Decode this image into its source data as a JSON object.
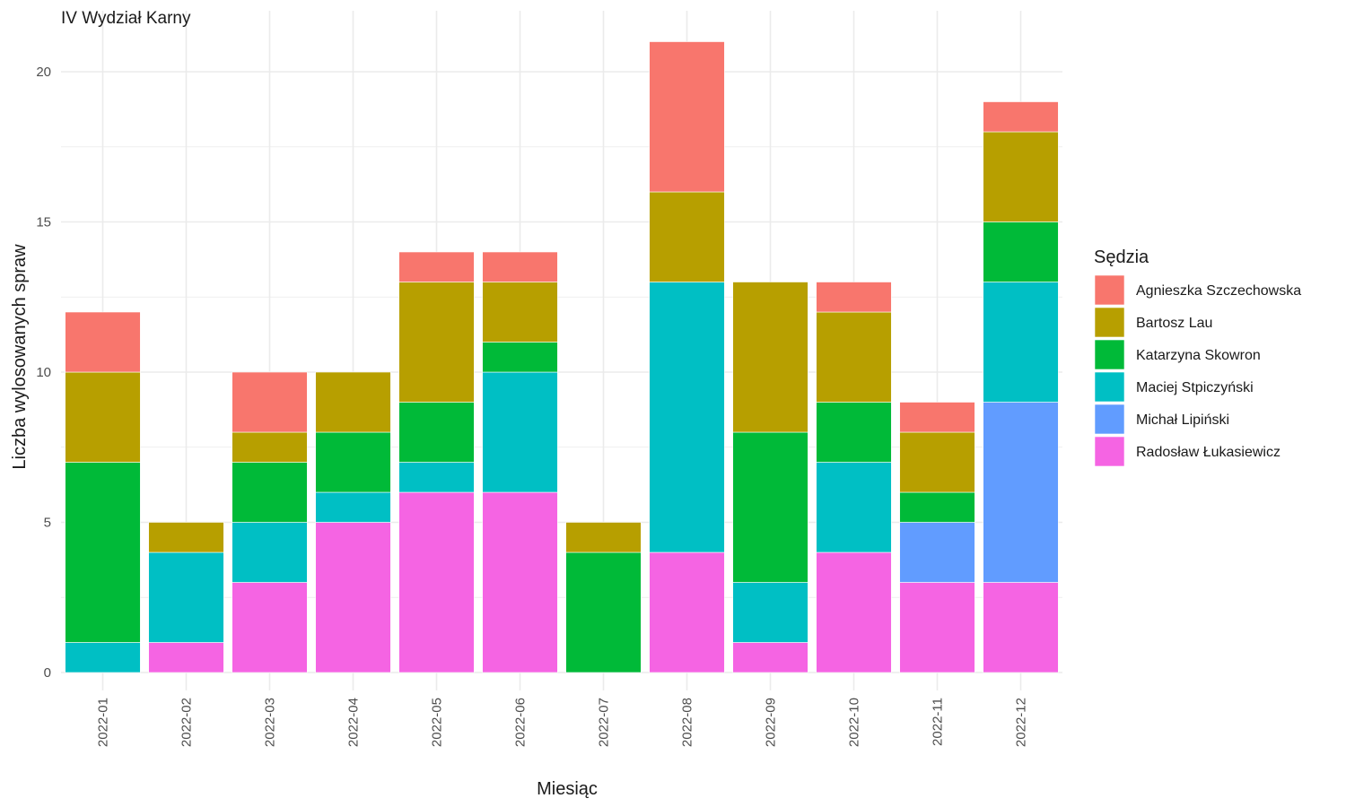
{
  "chart_data": {
    "type": "bar",
    "stacked": true,
    "title": "IV Wydział Karny",
    "xlabel": "Miesiąc",
    "ylabel": "Liczba wylosowanych spraw",
    "ylim": [
      0,
      21
    ],
    "yticks": [
      0,
      5,
      10,
      15,
      20
    ],
    "grid": true,
    "legend_position": "right",
    "legend_title": "Sędzia",
    "categories": [
      "2022-01",
      "2022-02",
      "2022-03",
      "2022-04",
      "2022-05",
      "2022-06",
      "2022-07",
      "2022-08",
      "2022-09",
      "2022-10",
      "2022-11",
      "2022-12"
    ],
    "series": [
      {
        "name": "Agnieszka Szczechowska",
        "color": "#F8766D",
        "values": [
          2,
          0,
          2,
          0,
          1,
          1,
          0,
          5,
          0,
          1,
          1,
          1
        ]
      },
      {
        "name": "Bartosz Lau",
        "color": "#B79F00",
        "values": [
          3,
          1,
          1,
          2,
          4,
          2,
          1,
          3,
          5,
          3,
          2,
          3
        ]
      },
      {
        "name": "Katarzyna Skowron",
        "color": "#00BA38",
        "values": [
          6,
          0,
          2,
          2,
          2,
          1,
          4,
          0,
          5,
          2,
          1,
          2
        ]
      },
      {
        "name": "Maciej Stpiczyński",
        "color": "#00BFC4",
        "values": [
          1,
          3,
          2,
          1,
          1,
          4,
          0,
          9,
          2,
          3,
          0,
          4
        ]
      },
      {
        "name": "Michał Lipiński",
        "color": "#619CFF",
        "values": [
          0,
          0,
          0,
          0,
          0,
          0,
          0,
          0,
          0,
          0,
          2,
          6
        ]
      },
      {
        "name": "Radosław Łukasiewicz",
        "color": "#F564E3",
        "values": [
          0,
          1,
          3,
          5,
          6,
          6,
          0,
          4,
          1,
          4,
          3,
          3
        ]
      }
    ]
  }
}
